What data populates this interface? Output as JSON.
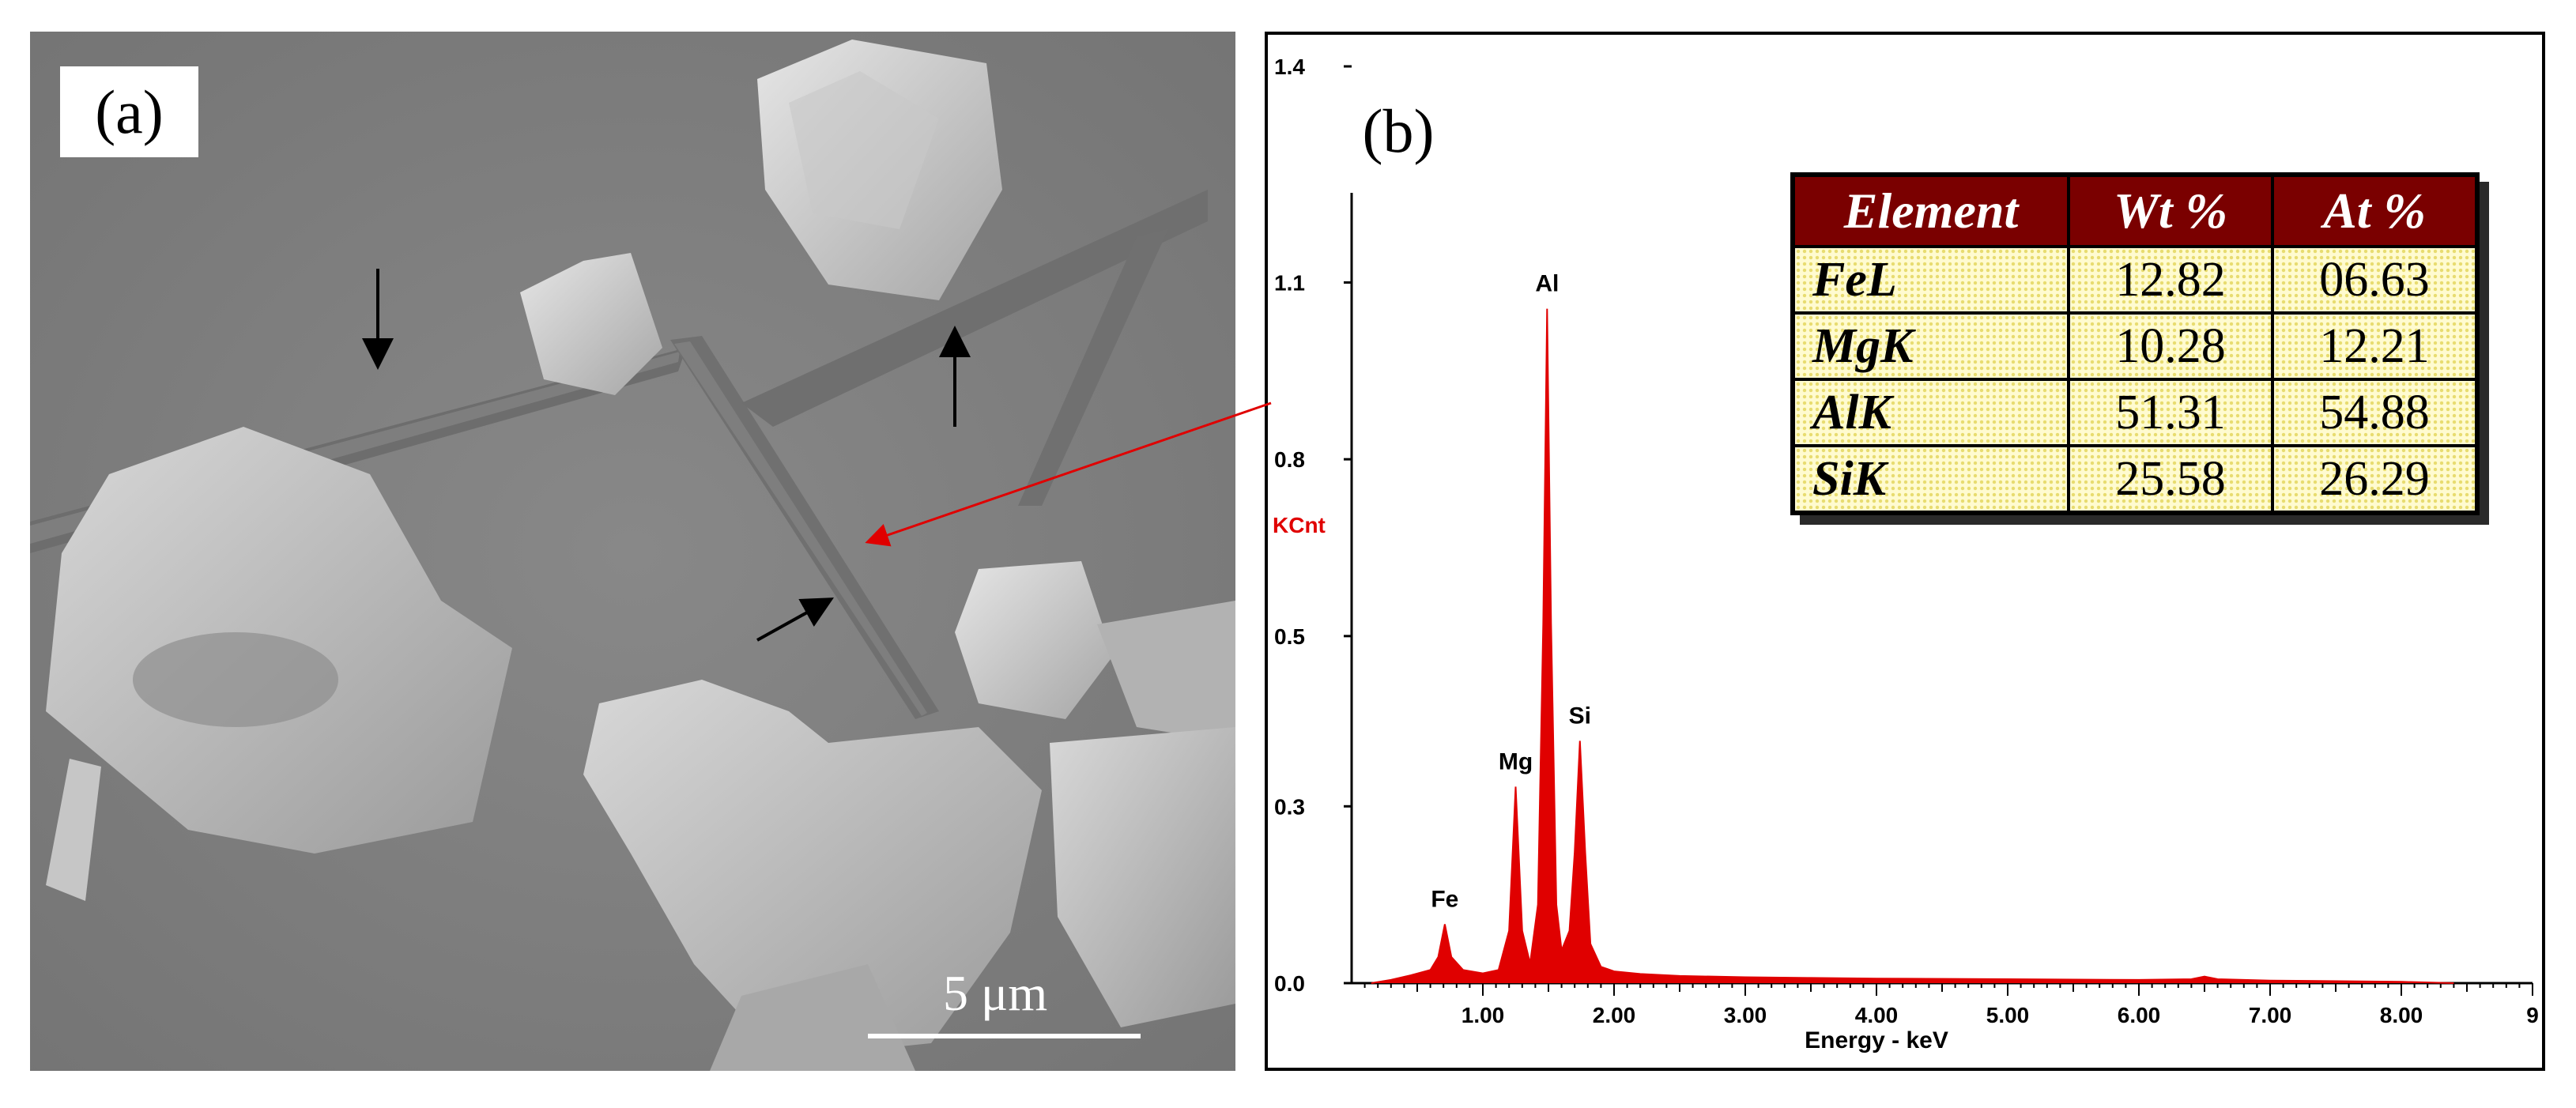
{
  "panel_a": {
    "label": "(a)",
    "scale_bar_label": "5 μm"
  },
  "panel_b": {
    "label": "(b)",
    "table": {
      "headers": [
        "Element",
        "Wt %",
        "At %"
      ],
      "rows": [
        [
          "FeL",
          "12.82",
          "06.63"
        ],
        [
          "MgK",
          "10.28",
          "12.21"
        ],
        [
          "AlK",
          "51.31",
          "54.88"
        ],
        [
          "SiK",
          "25.58",
          "26.29"
        ]
      ]
    }
  },
  "colors": {
    "spectrum": "#e00000",
    "ylabel": "#e00000",
    "table_header_bg": "#7a0000",
    "table_cell_bg": "#fffbd0"
  },
  "chart_data": {
    "type": "line",
    "title": "",
    "xlabel": "Energy - keV",
    "ylabel": "KCnt",
    "xlim": [
      0,
      9
    ],
    "ylim": [
      0,
      1.4
    ],
    "x_ticks": [
      1.0,
      2.0,
      3.0,
      4.0,
      5.0,
      6.0,
      7.0,
      8.0,
      9.0
    ],
    "x_tick_labels": [
      "1.00",
      "2.00",
      "3.00",
      "4.00",
      "5.00",
      "6.00",
      "7.00",
      "8.00",
      "9"
    ],
    "y_ticks": [
      0.0,
      0.27,
      0.53,
      0.8,
      1.07,
      1.4
    ],
    "y_tick_labels": [
      "0.0",
      "0.3",
      "0.5",
      "0.8",
      "1.1",
      "1.4"
    ],
    "grid": false,
    "peaks": [
      {
        "label": "Fe",
        "x": 0.71,
        "y": 0.09
      },
      {
        "label": "Mg",
        "x": 1.25,
        "y": 0.3
      },
      {
        "label": "Al",
        "x": 1.49,
        "y": 1.03
      },
      {
        "label": "Si",
        "x": 1.74,
        "y": 0.37
      }
    ],
    "series": [
      {
        "x": [
          0.15,
          0.3,
          0.45,
          0.6,
          0.66,
          0.71,
          0.76,
          0.85,
          1.0,
          1.12,
          1.2,
          1.25,
          1.3,
          1.36,
          1.42,
          1.46,
          1.49,
          1.52,
          1.56,
          1.6,
          1.66,
          1.7,
          1.74,
          1.78,
          1.82,
          1.9,
          2.0,
          2.2,
          2.5,
          3.0,
          3.5,
          4.0,
          5.0,
          6.0,
          6.4,
          6.5,
          6.6,
          7.0,
          8.0,
          8.4
        ],
        "y": [
          0.0,
          0.005,
          0.012,
          0.02,
          0.04,
          0.09,
          0.04,
          0.02,
          0.015,
          0.02,
          0.08,
          0.3,
          0.08,
          0.03,
          0.12,
          0.55,
          1.03,
          0.55,
          0.12,
          0.05,
          0.08,
          0.2,
          0.37,
          0.2,
          0.06,
          0.025,
          0.018,
          0.014,
          0.011,
          0.009,
          0.008,
          0.007,
          0.006,
          0.005,
          0.006,
          0.01,
          0.006,
          0.004,
          0.002,
          0.0
        ]
      }
    ]
  }
}
